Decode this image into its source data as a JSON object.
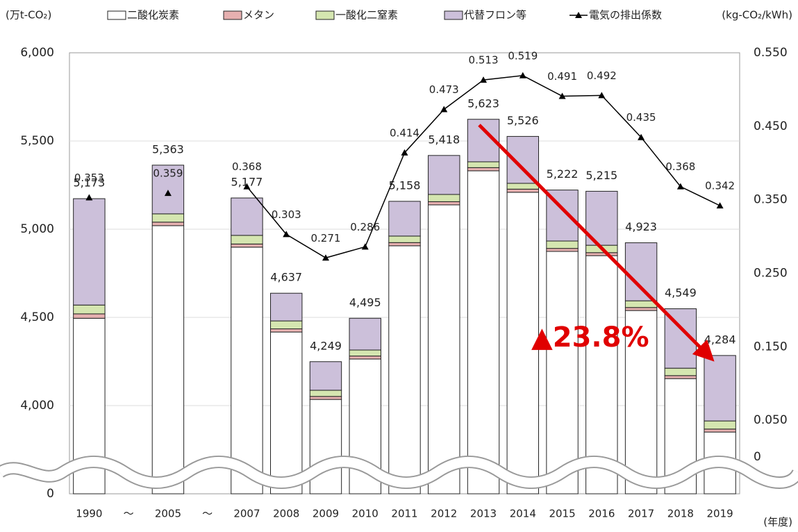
{
  "chart_data": {
    "type": "bar",
    "y_label": "(万t-CO₂)",
    "y2_label": "(kg-CO₂/kWh)",
    "x_label": "(年度)",
    "annotation": "▲23.8%",
    "categories": [
      "1990",
      "～",
      "2005",
      "～",
      "2007",
      "2008",
      "2009",
      "2010",
      "2011",
      "2012",
      "2013",
      "2014",
      "2015",
      "2016",
      "2017",
      "2018",
      "2019"
    ],
    "series": [
      {
        "name": "二酸化炭素",
        "color": "#ffffff",
        "values": [
          4495,
          null,
          5020,
          null,
          4898,
          4417,
          4035,
          4264,
          4906,
          5138,
          5331,
          5209,
          4874,
          4850,
          4539,
          4153,
          3850
        ]
      },
      {
        "name": "メタン",
        "color": "#e6b0b0",
        "values": [
          25,
          null,
          20,
          null,
          18,
          18,
          17,
          17,
          18,
          18,
          18,
          18,
          17,
          17,
          17,
          17,
          17
        ]
      },
      {
        "name": "一酸化二窒素",
        "color": "#d5e6b0",
        "values": [
          50,
          null,
          47,
          null,
          49,
          45,
          35,
          34,
          37,
          41,
          33,
          33,
          42,
          42,
          38,
          42,
          46
        ]
      },
      {
        "name": "代替フロン等",
        "color": "#ccc0da",
        "values": [
          603,
          null,
          276,
          null,
          212,
          157,
          162,
          180,
          197,
          221,
          241,
          266,
          289,
          306,
          329,
          337,
          371
        ]
      },
      {
        "name": "電気の排出係数",
        "type": "line",
        "axis": "y2",
        "color": "#000000",
        "values": [
          0.353,
          null,
          0.359,
          null,
          0.368,
          0.303,
          0.271,
          0.286,
          0.414,
          0.473,
          0.513,
          0.519,
          0.491,
          0.492,
          0.435,
          0.368,
          0.342
        ]
      }
    ],
    "totals": {
      "values": [
        5173,
        null,
        5363,
        null,
        5177,
        4637,
        4249,
        4495,
        5158,
        5418,
        5623,
        5526,
        5222,
        5215,
        4923,
        4549,
        4284
      ],
      "value_labels": [
        "5,173",
        null,
        "5,363",
        null,
        "5,177",
        "4,637",
        "4,249",
        "4,495",
        "5,158",
        "5,418",
        "5,623",
        "5,526",
        "5,222",
        "5,215",
        "4,923",
        "4,549",
        "4,284"
      ]
    },
    "axis_break": true,
    "ylim": [
      0,
      6000
    ],
    "yticks": [
      0,
      {
        "value": 4000,
        "label": "4,000"
      },
      {
        "value": 4500,
        "label": "4,500"
      },
      {
        "value": 5000,
        "label": "5,000"
      },
      {
        "value": 5500,
        "label": "5,500"
      },
      {
        "value": 6000,
        "label": "6,000"
      }
    ],
    "y2lim": [
      0,
      0.55
    ],
    "y2ticks": [
      0,
      {
        "value": 0.05,
        "label": "0.050"
      },
      {
        "value": 0.15,
        "label": "0.150"
      },
      {
        "value": 0.25,
        "label": "0.250"
      },
      {
        "value": 0.35,
        "label": "0.350"
      },
      {
        "value": 0.45,
        "label": "0.450"
      },
      {
        "value": 0.55,
        "label": "0.550"
      }
    ],
    "grid": true
  }
}
